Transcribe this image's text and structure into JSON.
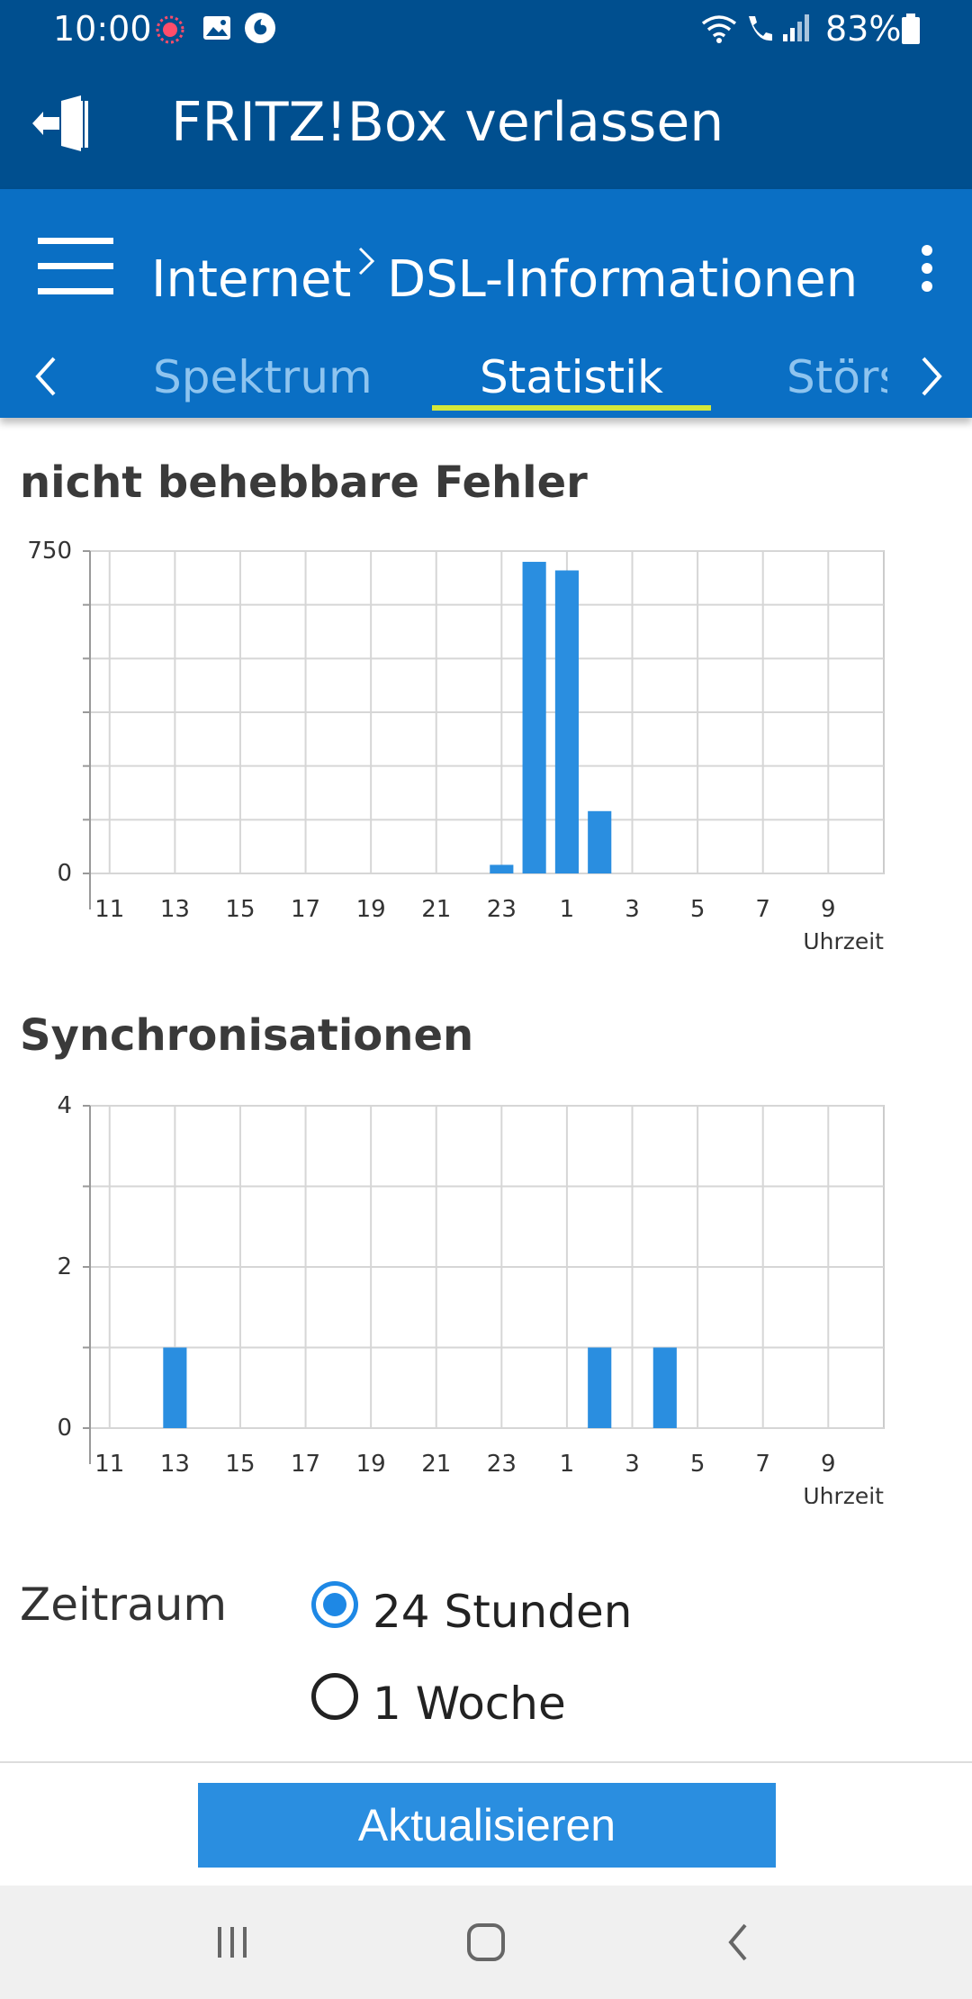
{
  "status_bar": {
    "time": "10:00",
    "battery": "83%",
    "icons": [
      "recording-icon",
      "image-icon",
      "vodafone-icon",
      "wifi-icon",
      "wifi-calling-icon",
      "signal-icon",
      "battery-icon"
    ]
  },
  "header": {
    "title": "FRITZ!Box verlassen",
    "logout_icon": "logout-icon"
  },
  "nav": {
    "breadcrumb_root": "Internet",
    "breadcrumb_current": "DSL-Informationen",
    "tabs": [
      {
        "label": "Spektrum",
        "active": false
      },
      {
        "label": "Statistik",
        "active": true
      },
      {
        "label": "Störs",
        "active": false
      }
    ]
  },
  "charts": {
    "errors_title": "nicht behebbare Fehler",
    "sync_title": "Synchronisationen"
  },
  "chart_data": [
    {
      "type": "bar",
      "title": "nicht behebbare Fehler",
      "xlabel": "Uhrzeit",
      "ylabel": "",
      "x_tick_labels": [
        "11",
        "13",
        "15",
        "17",
        "19",
        "21",
        "23",
        "1",
        "3",
        "5",
        "7",
        "9"
      ],
      "y_tick_labels": [
        "0",
        "750"
      ],
      "ylim": [
        0,
        750
      ],
      "grid": true,
      "categories": [
        "11",
        "12",
        "13",
        "14",
        "15",
        "16",
        "17",
        "18",
        "19",
        "20",
        "21",
        "22",
        "23",
        "0",
        "1",
        "2",
        "3",
        "4",
        "5",
        "6",
        "7",
        "8",
        "9",
        "10"
      ],
      "values": [
        0,
        0,
        0,
        0,
        0,
        0,
        0,
        0,
        0,
        0,
        0,
        0,
        20,
        725,
        705,
        145,
        0,
        0,
        0,
        0,
        0,
        0,
        0,
        0
      ]
    },
    {
      "type": "bar",
      "title": "Synchronisationen",
      "xlabel": "Uhrzeit",
      "ylabel": "",
      "x_tick_labels": [
        "11",
        "13",
        "15",
        "17",
        "19",
        "21",
        "23",
        "1",
        "3",
        "5",
        "7",
        "9"
      ],
      "y_tick_labels": [
        "0",
        "2",
        "4"
      ],
      "ylim": [
        0,
        4
      ],
      "grid": true,
      "categories": [
        "11",
        "12",
        "13",
        "14",
        "15",
        "16",
        "17",
        "18",
        "19",
        "20",
        "21",
        "22",
        "23",
        "0",
        "1",
        "2",
        "3",
        "4",
        "5",
        "6",
        "7",
        "8",
        "9",
        "10"
      ],
      "values": [
        0,
        0,
        1,
        0,
        0,
        0,
        0,
        0,
        0,
        0,
        0,
        0,
        0,
        0,
        0,
        1,
        0,
        1,
        0,
        0,
        0,
        0,
        0,
        0
      ]
    }
  ],
  "period": {
    "label": "Zeitraum",
    "options": [
      {
        "label": "24 Stunden",
        "selected": true
      },
      {
        "label": "1 Woche",
        "selected": false
      }
    ]
  },
  "actions": {
    "update_label": "Aktualisieren"
  },
  "colors": {
    "header_bg": "#004f8f",
    "nav_bg": "#0a6fc4",
    "tab_indicator": "#d5e83a",
    "bar": "#2a8ee0",
    "button": "#2a8ee0"
  }
}
